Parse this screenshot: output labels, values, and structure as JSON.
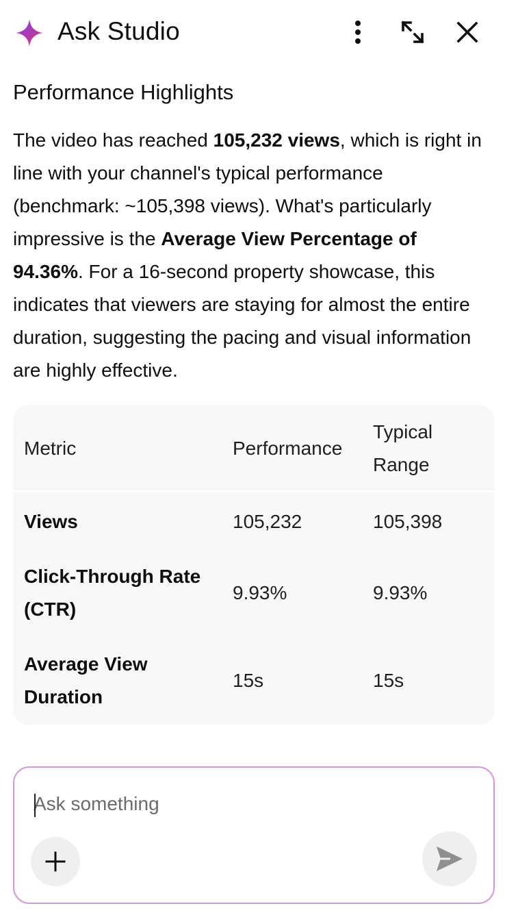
{
  "header": {
    "title": "Ask Studio",
    "brand_icon": "sparkle-icon",
    "accent_gradient": [
      "#7b3fe4",
      "#e0357f"
    ],
    "actions": [
      {
        "name": "more-options",
        "icon": "more-vertical-icon"
      },
      {
        "name": "expand",
        "icon": "expand-icon"
      },
      {
        "name": "close",
        "icon": "close-icon"
      }
    ]
  },
  "response": {
    "heading": "Performance Highlights",
    "summary_parts": {
      "p1": "The video has reached ",
      "b1": "105,232 views",
      "p2": ", which is right in line with your channel's typical performance (benchmark: ~105,398 views). What's particularly impressive is the ",
      "b2": "Average View Percentage of 94.36%",
      "p3": ". For a 16-second property showcase, this indicates that viewers are staying for almost the entire duration, suggesting the pacing and visual information are highly effective."
    }
  },
  "table": {
    "headers": [
      "Metric",
      "Performance",
      "Typical Range"
    ],
    "rows": [
      {
        "metric": "Views",
        "performance": "105,232",
        "typical": "105,398"
      },
      {
        "metric": "Click-Through Rate (CTR)",
        "performance": "9.93%",
        "typical": "9.93%"
      },
      {
        "metric": "Average View Duration",
        "performance": "15s",
        "typical": "15s"
      }
    ]
  },
  "composer": {
    "placeholder": "Ask something",
    "value": "",
    "add_icon": "plus-icon",
    "send_icon": "send-icon",
    "border_color": "#d49ad8"
  }
}
